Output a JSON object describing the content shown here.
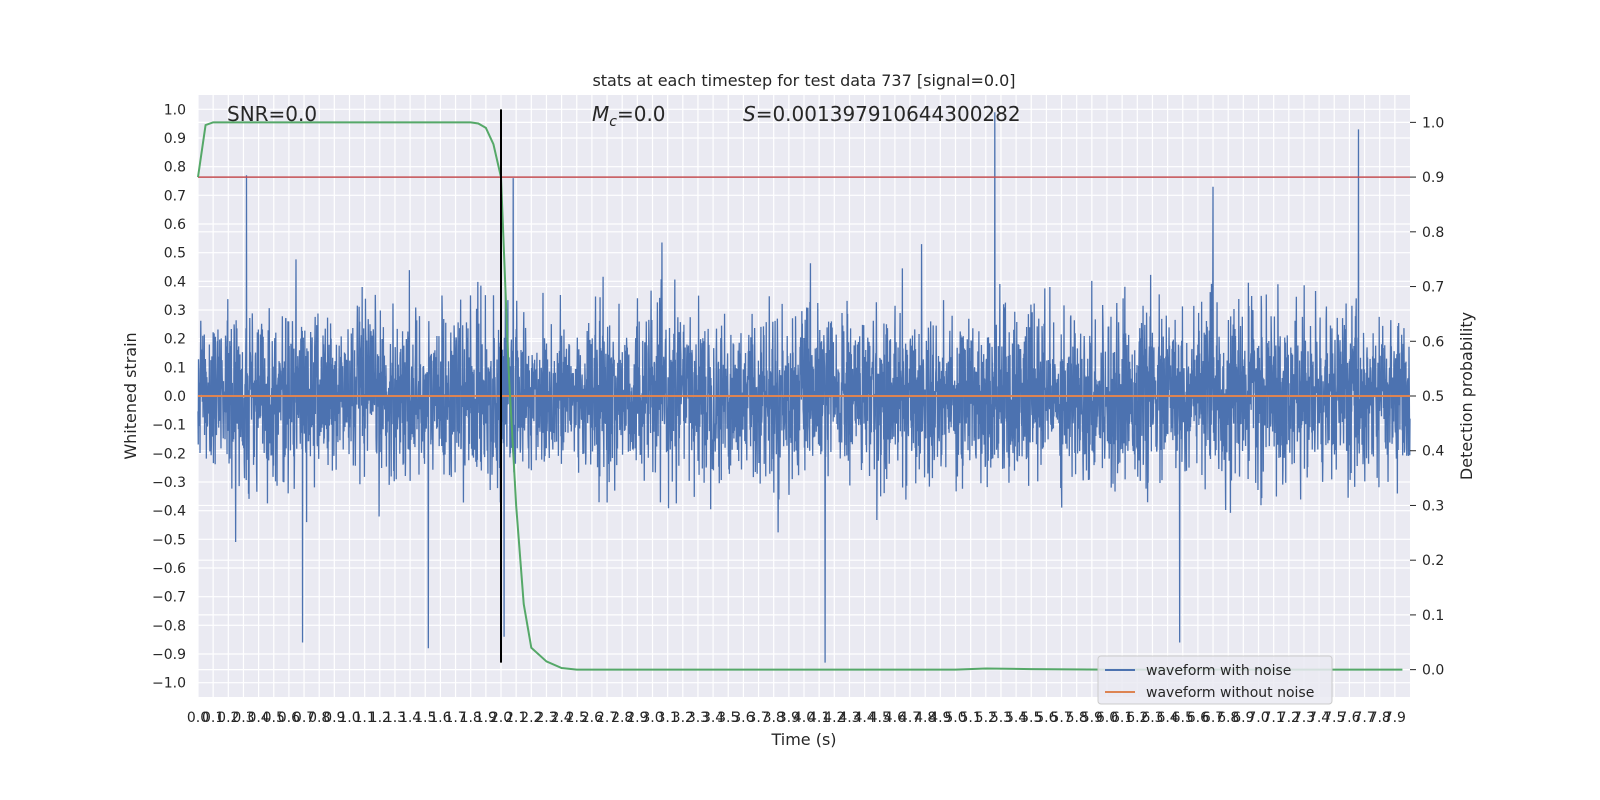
{
  "chart_data": {
    "type": "line",
    "title": "stats at each timestep for test data 737 [signal=0.0]",
    "xlabel": "Time (s)",
    "ylabel": "Whitened strain",
    "y2label": "Detection probability",
    "xlim": [
      0.0,
      8.0
    ],
    "ylim": [
      -1.05,
      1.05
    ],
    "y2lim": [
      -0.05,
      1.05
    ],
    "grid": true,
    "legend_position": "bottom-right",
    "x_ticks": [
      "0.0",
      "0.1",
      "0.2",
      "0.3",
      "0.4",
      "0.5",
      "0.6",
      "0.7",
      "0.8",
      "0.9",
      "1.0",
      "1.1",
      "1.2",
      "1.3",
      "1.4",
      "1.5",
      "1.6",
      "1.7",
      "1.8",
      "1.9",
      "2.0",
      "2.1",
      "2.2",
      "2.3",
      "2.4",
      "2.5",
      "2.6",
      "2.7",
      "2.8",
      "2.9",
      "3.0",
      "3.1",
      "3.2",
      "3.3",
      "3.4",
      "3.5",
      "3.6",
      "3.7",
      "3.8",
      "3.9",
      "4.0",
      "4.1",
      "4.2",
      "4.3",
      "4.4",
      "4.5",
      "4.6",
      "4.7",
      "4.8",
      "4.9",
      "5.0",
      "5.1",
      "5.2",
      "5.3",
      "5.4",
      "5.5",
      "5.6",
      "5.7",
      "5.8",
      "5.9",
      "6.0",
      "6.1",
      "6.2",
      "6.3",
      "6.4",
      "6.5",
      "6.6",
      "6.7",
      "6.8",
      "6.9",
      "7.0",
      "7.1",
      "7.2",
      "7.3",
      "7.4",
      "7.5",
      "7.6",
      "7.7",
      "7.8",
      "7.9"
    ],
    "y_ticks": [
      "1.0",
      "0.9",
      "0.8",
      "0.7",
      "0.6",
      "0.5",
      "0.4",
      "0.3",
      "0.2",
      "0.1",
      "0.0",
      "−0.1",
      "−0.2",
      "−0.3",
      "−0.4",
      "−0.5",
      "−0.6",
      "−0.7",
      "−0.8",
      "−0.9",
      "−1.0"
    ],
    "y2_ticks": [
      "1.0",
      "0.9",
      "0.8",
      "0.7",
      "0.6",
      "0.5",
      "0.4",
      "0.3",
      "0.2",
      "0.1",
      "0.0"
    ],
    "annotations": {
      "snr": "SNR=0.0",
      "mc_symbol": "M",
      "mc_sub": "c",
      "mc_value": "=0.0",
      "s_symbol": "S",
      "s_value": "=0.001397910644300282"
    },
    "series": [
      {
        "name": "waveform with noise",
        "color": "#4c72b0",
        "axis": "left",
        "noise_std": 0.14,
        "noise_max": 0.99,
        "noise_min": -0.93,
        "notable_peaks": [
          {
            "x": 5.26,
            "y": 0.99
          },
          {
            "x": 7.66,
            "y": 0.93
          },
          {
            "x": 0.32,
            "y": 0.77
          },
          {
            "x": 2.08,
            "y": 0.76
          },
          {
            "x": 6.7,
            "y": 0.73
          },
          {
            "x": 4.14,
            "y": -0.93
          },
          {
            "x": 6.48,
            "y": -0.86
          },
          {
            "x": 0.69,
            "y": -0.86
          },
          {
            "x": 1.52,
            "y": -0.88
          },
          {
            "x": 2.02,
            "y": -0.84
          }
        ]
      },
      {
        "name": "waveform without noise",
        "color": "#dd8452",
        "axis": "left",
        "x": [
          0.0,
          8.0
        ],
        "y": [
          0.0,
          0.0
        ]
      },
      {
        "color": "#55a868",
        "axis": "right",
        "x": [
          0.0,
          0.05,
          0.1,
          0.5,
          1.0,
          1.5,
          1.8,
          1.85,
          1.9,
          1.95,
          2.0,
          2.05,
          2.1,
          2.15,
          2.2,
          2.3,
          2.4,
          2.5,
          3.0,
          4.0,
          5.0,
          5.2,
          5.5,
          6.0,
          7.0,
          7.95
        ],
        "y": [
          0.9,
          0.995,
          1.0,
          1.0,
          1.0,
          1.0,
          1.0,
          0.998,
          0.99,
          0.96,
          0.9,
          0.55,
          0.3,
          0.12,
          0.04,
          0.015,
          0.003,
          0.0,
          0.0,
          0.0,
          0.0,
          0.002,
          0.001,
          0.0,
          0.0,
          0.0
        ]
      }
    ],
    "threshold": {
      "axis": "right",
      "y": 0.9,
      "color": "#c44e52"
    },
    "vertical_marker": {
      "x": 2.0,
      "y_from": -0.93,
      "y_to": 1.0,
      "color": "#000000"
    }
  }
}
